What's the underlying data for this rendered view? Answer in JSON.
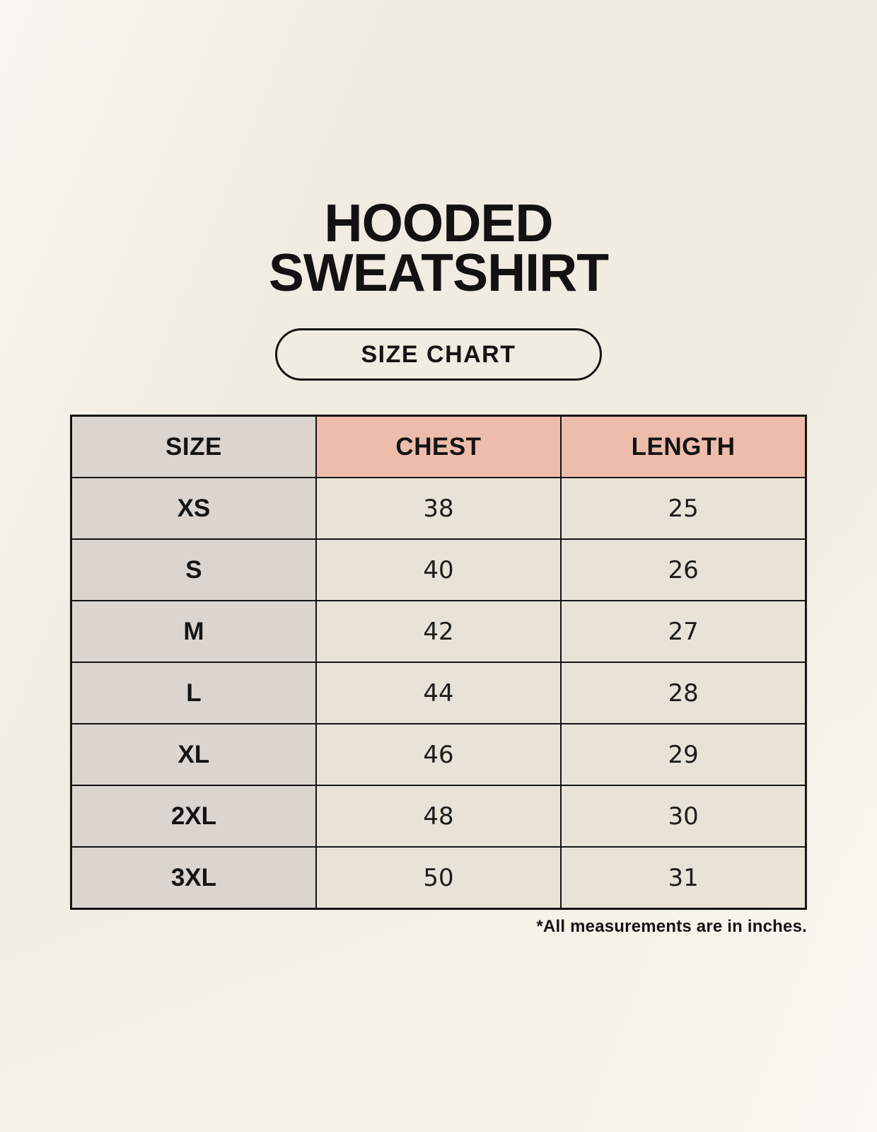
{
  "page": {
    "title_line1": "HOODED",
    "title_line2": "SWEATSHIRT",
    "size_chart_button_label": "SIZE CHART",
    "footnote": "*All measurements are in inches."
  },
  "chart_data": {
    "type": "table",
    "title": "HOODED SWEATSHIRT — SIZE CHART",
    "units": "inches",
    "columns": [
      "SIZE",
      "CHEST",
      "LENGTH"
    ],
    "rows": [
      [
        "XS",
        "38",
        "25"
      ],
      [
        "S",
        "40",
        "26"
      ],
      [
        "M",
        "42",
        "27"
      ],
      [
        "L",
        "44",
        "28"
      ],
      [
        "XL",
        "46",
        "29"
      ],
      [
        "2XL",
        "48",
        "30"
      ],
      [
        "3XL",
        "50",
        "31"
      ]
    ]
  },
  "colors": {
    "page_background": "#f6f2e9",
    "header_accent_salmon": "#eebcab",
    "size_column_taupe": "#dbd4cf",
    "value_cell_cream": "#e9e3d7",
    "border_and_text": "#141414"
  }
}
